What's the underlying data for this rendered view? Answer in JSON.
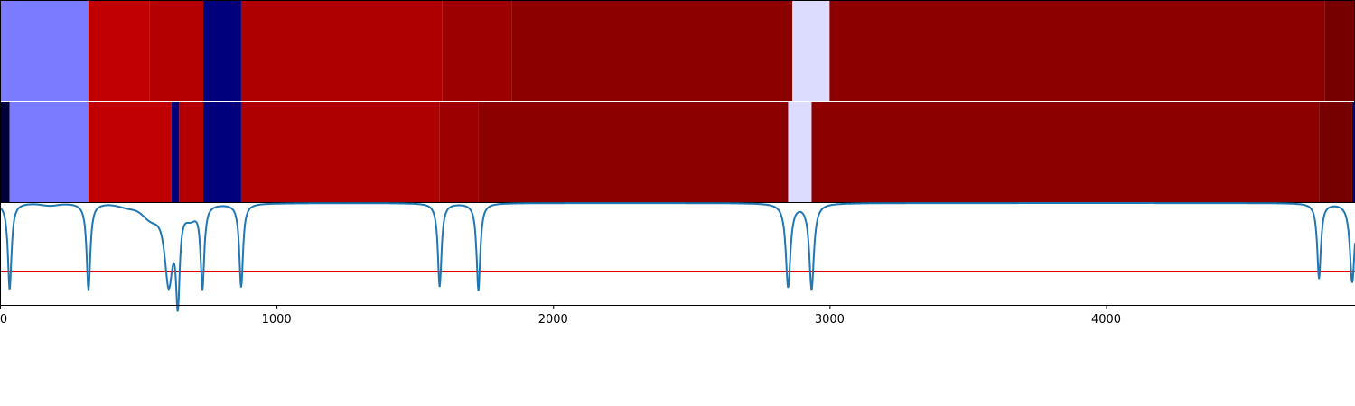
{
  "chart_data": {
    "type": "heatmap",
    "title": "",
    "xlabel": "",
    "ylabel": "",
    "xlim": [
      0,
      4900
    ],
    "grid": false,
    "legend": "none",
    "x_ticks": [
      0,
      1000,
      2000,
      3000,
      4000
    ],
    "x_tick_labels": [
      "0",
      "1000",
      "2000",
      "3000",
      "4000"
    ],
    "heatmap_rows": [
      {
        "segments": [
          {
            "start": 0,
            "end": 320,
            "color": "#7b7bff"
          },
          {
            "start": 320,
            "end": 540,
            "color": "#c00000"
          },
          {
            "start": 540,
            "end": 735,
            "color": "#b40000"
          },
          {
            "start": 735,
            "end": 872,
            "color": "#00007c"
          },
          {
            "start": 872,
            "end": 1600,
            "color": "#ae0000"
          },
          {
            "start": 1600,
            "end": 1850,
            "color": "#9c0000"
          },
          {
            "start": 1850,
            "end": 2865,
            "color": "#8c0000"
          },
          {
            "start": 2865,
            "end": 3000,
            "color": "#dcdcff"
          },
          {
            "start": 3000,
            "end": 4790,
            "color": "#8c0000"
          },
          {
            "start": 4790,
            "end": 4900,
            "color": "#760000"
          }
        ]
      },
      {
        "segments": [
          {
            "start": 0,
            "end": 35,
            "color": "#00003a"
          },
          {
            "start": 35,
            "end": 320,
            "color": "#7b7bff"
          },
          {
            "start": 320,
            "end": 620,
            "color": "#c00000"
          },
          {
            "start": 620,
            "end": 648,
            "color": "#00007c"
          },
          {
            "start": 648,
            "end": 735,
            "color": "#b40000"
          },
          {
            "start": 735,
            "end": 872,
            "color": "#00007c"
          },
          {
            "start": 872,
            "end": 1590,
            "color": "#ae0000"
          },
          {
            "start": 1590,
            "end": 1730,
            "color": "#9c0000"
          },
          {
            "start": 1730,
            "end": 2850,
            "color": "#8c0000"
          },
          {
            "start": 2850,
            "end": 2935,
            "color": "#dcdcff"
          },
          {
            "start": 2935,
            "end": 4770,
            "color": "#8c0000"
          },
          {
            "start": 4770,
            "end": 4890,
            "color": "#760000"
          },
          {
            "start": 4890,
            "end": 4900,
            "color": "#00007c"
          }
        ]
      }
    ],
    "line_series": {
      "color": "#1f77b4",
      "ylim": [
        0,
        1
      ],
      "baseline": 1.0,
      "dips": [
        {
          "x": 35,
          "depth": 0.85,
          "width": 8
        },
        {
          "x": 320,
          "depth": 0.85,
          "width": 8
        },
        {
          "x": 610,
          "depth": 0.78,
          "width": 18
        },
        {
          "x": 643,
          "depth": 0.88,
          "width": 8
        },
        {
          "x": 732,
          "depth": 0.82,
          "width": 8
        },
        {
          "x": 872,
          "depth": 0.82,
          "width": 8
        },
        {
          "x": 1590,
          "depth": 0.82,
          "width": 8
        },
        {
          "x": 1730,
          "depth": 0.86,
          "width": 8
        },
        {
          "x": 2850,
          "depth": 0.82,
          "width": 10
        },
        {
          "x": 2935,
          "depth": 0.84,
          "width": 10
        },
        {
          "x": 4770,
          "depth": 0.74,
          "width": 8
        },
        {
          "x": 4890,
          "depth": 0.78,
          "width": 10
        }
      ],
      "bumps": [
        {
          "x": 180,
          "depth": 0.02,
          "width": 40
        },
        {
          "x": 470,
          "depth": 0.04,
          "width": 50
        },
        {
          "x": 545,
          "depth": 0.12,
          "width": 40
        },
        {
          "x": 690,
          "depth": 0.1,
          "width": 25
        }
      ]
    },
    "threshold_line": {
      "y": 0.33,
      "color": "#e00000"
    }
  }
}
